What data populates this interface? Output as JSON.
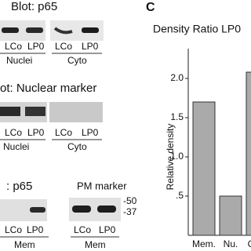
{
  "blots": [
    {
      "title": "Blot: p65",
      "lanes": [
        "LCo",
        "LP0",
        "LCo",
        "LP0"
      ],
      "groups": [
        "Nuclei",
        "Cyto"
      ]
    },
    {
      "title": "ot: Nuclear marker",
      "lanes": [
        "LCo",
        "LP0",
        "LCo",
        "LP0"
      ],
      "groups": [
        "Nuclei",
        "Cyto"
      ]
    },
    {
      "title": ": p65",
      "title2": "PM marker",
      "lanes": [
        "LCo",
        "LP0",
        "LCo",
        "LP0"
      ],
      "groups": [
        "Mem",
        "Mem"
      ],
      "markers": [
        "-50",
        "-37"
      ]
    }
  ],
  "panel_label": "C",
  "chart_data": {
    "type": "bar",
    "title": "Density Ratio LP0",
    "y_label": "Relative density",
    "categories": [
      "Mem.",
      "Nu.",
      "Cyto"
    ],
    "values": [
      1.7,
      0.5,
      2.08
    ],
    "color": "#aaaaaa",
    "ylim": [
      0,
      2.4
    ],
    "yticks": [
      {
        "value": 0.5,
        "label": ".5"
      },
      {
        "value": 1,
        "label": "1.0"
      },
      {
        "value": 1.5,
        "label": "1.5"
      },
      {
        "value": 2,
        "label": "2.0"
      }
    ]
  }
}
